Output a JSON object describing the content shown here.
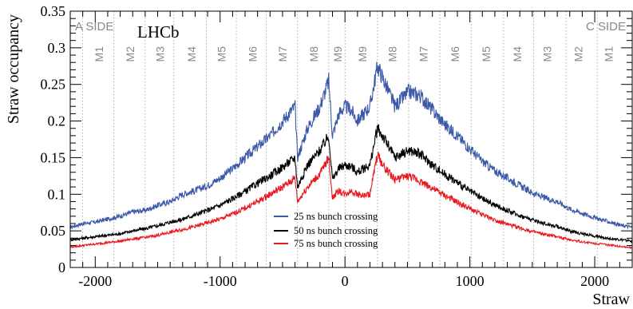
{
  "chart_data": {
    "type": "line",
    "title": "",
    "xlabel": "Straw",
    "ylabel": "Straw occupancy",
    "xlim": [
      -2200,
      2300
    ],
    "ylim": [
      0,
      0.35
    ],
    "x_ticks": [
      -2000,
      -1000,
      0,
      1000,
      2000
    ],
    "y_ticks": [
      0,
      0.05,
      0.1,
      0.15,
      0.2,
      0.25,
      0.3,
      0.35
    ],
    "y_tick_labels": [
      "0",
      "0.05",
      "0.1",
      "0.15",
      "0.2",
      "0.25",
      "0.3",
      "0.35"
    ],
    "x_tick_labels": [
      "-2000",
      "-1000",
      "0",
      "1000",
      "2000"
    ],
    "grid": "vertical dotted lines at module boundaries",
    "side_labels": {
      "left": "A SIDE",
      "right": "C SIDE"
    },
    "experiment_label": "LHCb",
    "module_boundaries": [
      -2100,
      -1850,
      -1600,
      -1370,
      -1110,
      -870,
      -630,
      -380,
      -130,
      0,
      260,
      510,
      760,
      1010,
      1270,
      1510,
      1770,
      2020
    ],
    "module_labels": [
      {
        "text": "M1",
        "x": -1970
      },
      {
        "text": "M2",
        "x": -1720
      },
      {
        "text": "M3",
        "x": -1480
      },
      {
        "text": "M4",
        "x": -1230
      },
      {
        "text": "M5",
        "x": -990
      },
      {
        "text": "M6",
        "x": -740
      },
      {
        "text": "M7",
        "x": -500
      },
      {
        "text": "M8",
        "x": -250
      },
      {
        "text": "M9",
        "x": -60
      },
      {
        "text": "M9",
        "x": 140
      },
      {
        "text": "M8",
        "x": 380
      },
      {
        "text": "M7",
        "x": 630
      },
      {
        "text": "M6",
        "x": 880
      },
      {
        "text": "M5",
        "x": 1130
      },
      {
        "text": "M4",
        "x": 1380
      },
      {
        "text": "M3",
        "x": 1620
      },
      {
        "text": "M2",
        "x": 1870
      },
      {
        "text": "M1",
        "x": 2110
      }
    ],
    "legend_position": "bottom-center",
    "series": [
      {
        "name": "25 ns bunch crossing",
        "color": "#3c58a8",
        "x": [
          -2200,
          -2100,
          -2000,
          -1900,
          -1800,
          -1700,
          -1600,
          -1500,
          -1400,
          -1300,
          -1200,
          -1100,
          -1000,
          -900,
          -800,
          -700,
          -600,
          -500,
          -400,
          -380,
          -300,
          -200,
          -130,
          -100,
          -50,
          0,
          50,
          100,
          150,
          200,
          260,
          300,
          400,
          510,
          600,
          700,
          800,
          900,
          1000,
          1100,
          1200,
          1300,
          1400,
          1500,
          1600,
          1700,
          1800,
          1900,
          2000,
          2100,
          2200,
          2300
        ],
        "y": [
          0.055,
          0.06,
          0.062,
          0.066,
          0.07,
          0.076,
          0.078,
          0.085,
          0.09,
          0.1,
          0.105,
          0.112,
          0.122,
          0.135,
          0.15,
          0.165,
          0.18,
          0.2,
          0.22,
          0.15,
          0.19,
          0.22,
          0.255,
          0.18,
          0.21,
          0.22,
          0.215,
          0.2,
          0.21,
          0.22,
          0.275,
          0.26,
          0.22,
          0.24,
          0.235,
          0.215,
          0.195,
          0.18,
          0.162,
          0.145,
          0.132,
          0.122,
          0.112,
          0.102,
          0.095,
          0.09,
          0.08,
          0.074,
          0.068,
          0.063,
          0.058,
          0.055
        ]
      },
      {
        "name": "50 ns bunch crossing",
        "color": "#000000",
        "x": [
          -2200,
          -2100,
          -2000,
          -1900,
          -1800,
          -1700,
          -1600,
          -1500,
          -1400,
          -1300,
          -1200,
          -1100,
          -1000,
          -900,
          -800,
          -700,
          -600,
          -500,
          -400,
          -380,
          -300,
          -200,
          -130,
          -100,
          -50,
          0,
          50,
          100,
          150,
          200,
          260,
          300,
          400,
          510,
          600,
          700,
          800,
          900,
          1000,
          1100,
          1200,
          1300,
          1400,
          1500,
          1600,
          1700,
          1800,
          1900,
          2000,
          2100,
          2200,
          2300
        ],
        "y": [
          0.038,
          0.04,
          0.042,
          0.044,
          0.046,
          0.05,
          0.053,
          0.057,
          0.062,
          0.066,
          0.072,
          0.078,
          0.085,
          0.094,
          0.104,
          0.115,
          0.125,
          0.137,
          0.15,
          0.11,
          0.14,
          0.16,
          0.18,
          0.12,
          0.135,
          0.14,
          0.138,
          0.13,
          0.135,
          0.14,
          0.19,
          0.18,
          0.15,
          0.16,
          0.155,
          0.14,
          0.127,
          0.116,
          0.104,
          0.094,
          0.085,
          0.078,
          0.071,
          0.065,
          0.06,
          0.056,
          0.05,
          0.046,
          0.043,
          0.04,
          0.038,
          0.036
        ]
      },
      {
        "name": "75 ns bunch crossing",
        "color": "#e8191f",
        "x": [
          -2200,
          -2100,
          -2000,
          -1900,
          -1800,
          -1700,
          -1600,
          -1500,
          -1400,
          -1300,
          -1200,
          -1100,
          -1000,
          -900,
          -800,
          -700,
          -600,
          -500,
          -400,
          -380,
          -300,
          -200,
          -130,
          -100,
          -50,
          0,
          50,
          100,
          150,
          200,
          260,
          300,
          400,
          510,
          600,
          700,
          800,
          900,
          1000,
          1100,
          1200,
          1300,
          1400,
          1500,
          1600,
          1700,
          1800,
          1900,
          2000,
          2100,
          2200,
          2300
        ],
        "y": [
          0.028,
          0.03,
          0.032,
          0.034,
          0.036,
          0.039,
          0.041,
          0.044,
          0.048,
          0.052,
          0.056,
          0.061,
          0.066,
          0.073,
          0.081,
          0.09,
          0.1,
          0.11,
          0.122,
          0.09,
          0.11,
          0.128,
          0.15,
          0.095,
          0.105,
          0.1,
          0.105,
          0.1,
          0.098,
          0.1,
          0.155,
          0.14,
          0.12,
          0.125,
          0.118,
          0.108,
          0.098,
          0.089,
          0.08,
          0.072,
          0.065,
          0.059,
          0.054,
          0.049,
          0.045,
          0.042,
          0.038,
          0.035,
          0.033,
          0.031,
          0.029,
          0.027
        ]
      }
    ]
  }
}
